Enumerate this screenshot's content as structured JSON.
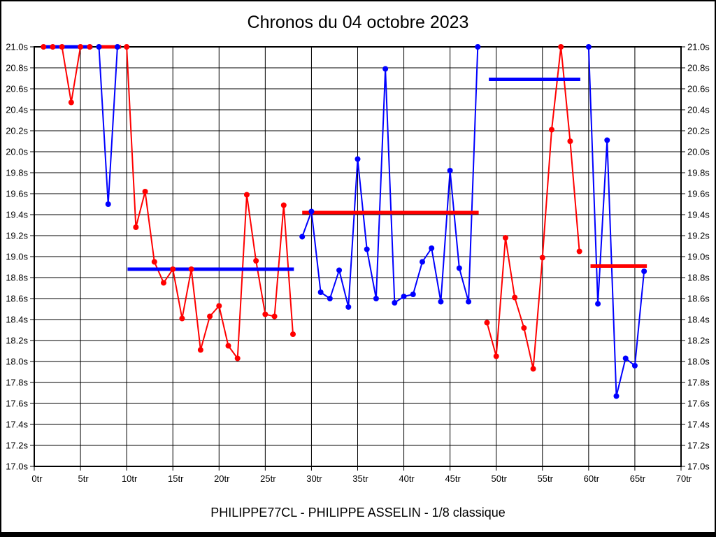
{
  "title": "Chronos du 04 octobre 2023",
  "footer": "PHILIPPE77CL - PHILIPPE ASSELIN - 1/8 classique",
  "colors": {
    "red": "#ff0000",
    "blue": "#0000ff",
    "grid": "#000000",
    "background": "#ffffff"
  },
  "chart_data": {
    "type": "line",
    "title": "Chronos du 04 octobre 2023",
    "x_unit": "tr",
    "y_unit": "s",
    "xlim": [
      0,
      70
    ],
    "ylim": [
      17.0,
      21.0
    ],
    "grid": true,
    "legend": "none",
    "x_tick_labels": [
      "0tr",
      "5tr",
      "10tr",
      "15tr",
      "20tr",
      "25tr",
      "30tr",
      "35tr",
      "40tr",
      "45tr",
      "50tr",
      "55tr",
      "60tr",
      "65tr",
      "70tr"
    ],
    "y_tick_labels": [
      "21.0s",
      "20.8s",
      "20.6s",
      "20.4s",
      "20.2s",
      "20.0s",
      "19.8s",
      "19.6s",
      "19.4s",
      "19.2s",
      "19.0s",
      "18.8s",
      "18.6s",
      "18.4s",
      "18.2s",
      "18.0s",
      "17.8s",
      "17.6s",
      "17.4s",
      "17.2s",
      "17.0s"
    ],
    "series": [
      {
        "name": "heat-1",
        "color": "red",
        "laps": [
          1,
          2,
          3,
          4,
          5,
          6
        ],
        "times": [
          21.0,
          21.0,
          21.0,
          20.47,
          21.0,
          21.0
        ]
      },
      {
        "name": "heat-2",
        "color": "blue",
        "laps": [
          7,
          8,
          9
        ],
        "times": [
          21.0,
          19.5,
          21.0
        ]
      },
      {
        "name": "heat-3",
        "color": "red",
        "laps": [
          10,
          11,
          12,
          13,
          14,
          15,
          16,
          17,
          18,
          19,
          20,
          21,
          22,
          23,
          24,
          25,
          26,
          27,
          28
        ],
        "times": [
          21.0,
          19.28,
          19.62,
          18.95,
          18.75,
          18.88,
          18.41,
          18.88,
          18.11,
          18.43,
          18.53,
          18.15,
          18.03,
          19.59,
          18.96,
          18.45,
          18.43,
          19.49,
          18.26
        ]
      },
      {
        "name": "heat-4",
        "color": "blue",
        "laps": [
          29,
          30,
          31,
          32,
          33,
          34,
          35,
          36,
          37,
          38,
          39,
          40,
          41,
          42,
          43,
          44,
          45,
          46,
          47,
          48
        ],
        "times": [
          19.19,
          19.43,
          18.66,
          18.6,
          18.87,
          18.52,
          19.93,
          19.07,
          18.6,
          20.79,
          18.56,
          18.62,
          18.64,
          18.95,
          19.08,
          18.57,
          19.82,
          18.89,
          18.57,
          21.0
        ]
      },
      {
        "name": "heat-5",
        "color": "red",
        "laps": [
          49,
          50,
          51,
          52,
          53,
          54,
          55,
          56,
          57,
          58,
          59
        ],
        "times": [
          18.37,
          18.05,
          19.18,
          18.61,
          18.32,
          17.93,
          18.99,
          20.21,
          21.0,
          20.1,
          19.05
        ]
      },
      {
        "name": "heat-6",
        "color": "blue",
        "laps": [
          60,
          61,
          62,
          63,
          64,
          65,
          66
        ],
        "times": [
          21.0,
          18.55,
          20.11,
          17.67,
          18.03,
          17.96,
          18.86
        ]
      }
    ],
    "average_lines": [
      {
        "name": "avg-heat-1",
        "color": "blue",
        "value": 21.0,
        "from_lap": 0.9,
        "to_lap": 6.3
      },
      {
        "name": "avg-heat-2",
        "color": "red",
        "value": 21.0,
        "from_lap": 7.0,
        "to_lap": 9.4
      },
      {
        "name": "avg-heat-3",
        "color": "blue",
        "value": 18.88,
        "from_lap": 10.1,
        "to_lap": 28.1
      },
      {
        "name": "avg-heat-4",
        "color": "red",
        "value": 19.42,
        "from_lap": 29.0,
        "to_lap": 48.1
      },
      {
        "name": "avg-heat-5",
        "color": "blue",
        "value": 20.69,
        "from_lap": 49.2,
        "to_lap": 59.1
      },
      {
        "name": "avg-heat-6",
        "color": "red",
        "value": 18.91,
        "from_lap": 60.2,
        "to_lap": 66.3
      }
    ]
  }
}
